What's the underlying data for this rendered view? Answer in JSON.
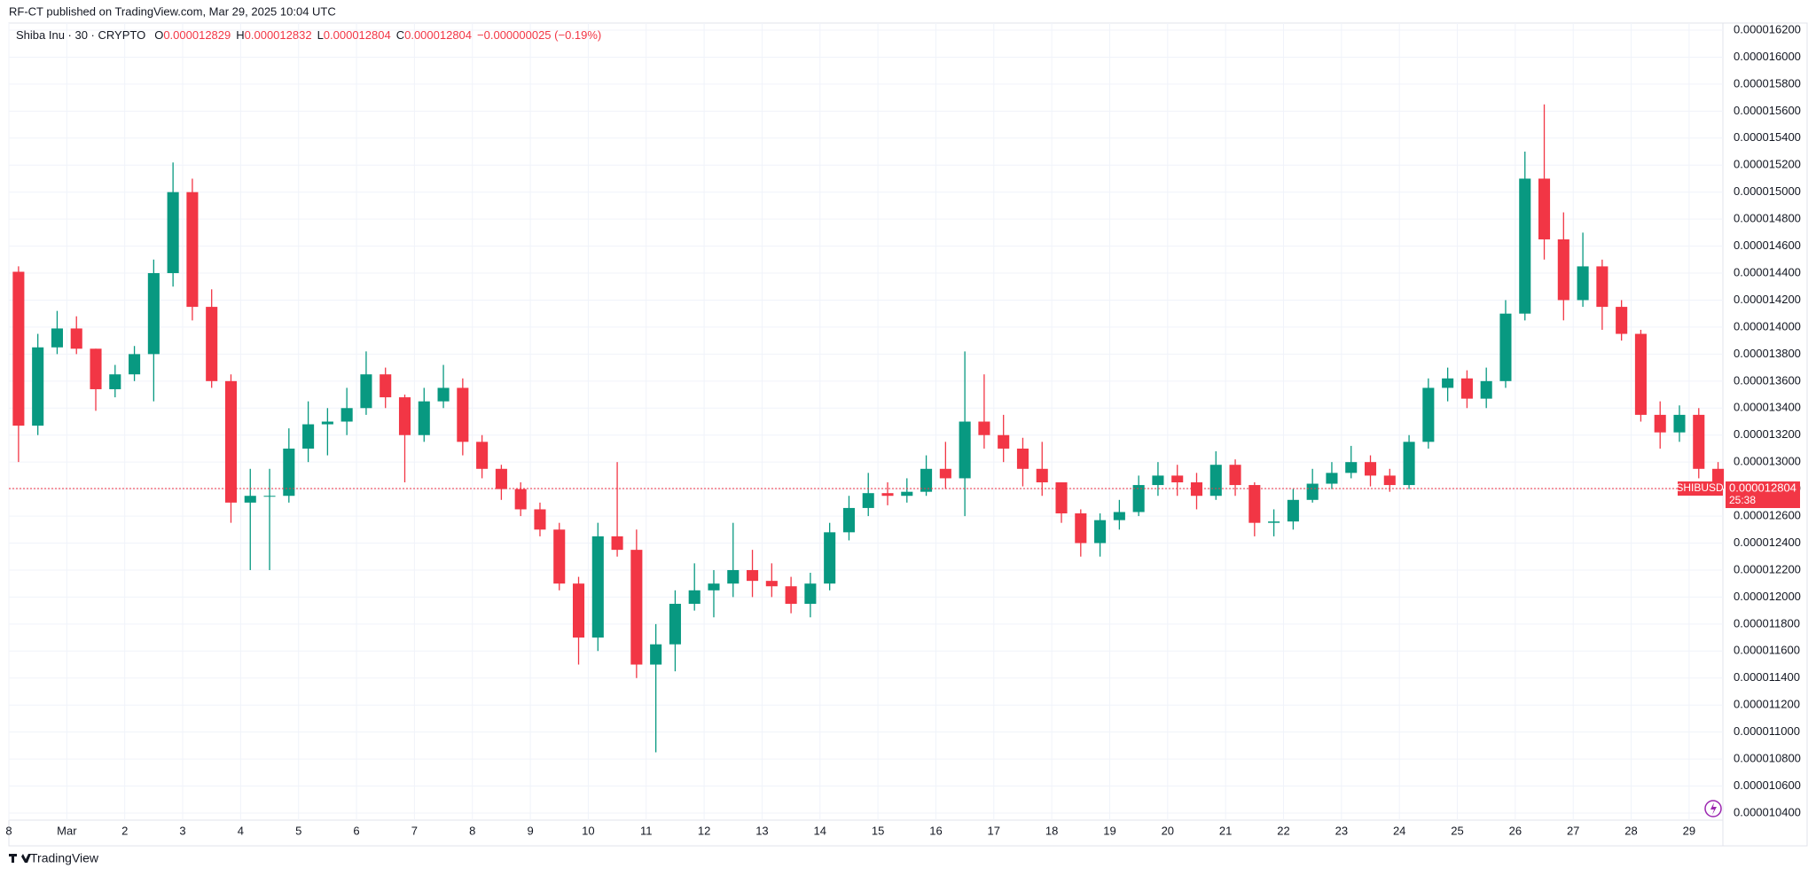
{
  "header": {
    "publisher": "RF-CT published on TradingView.com, Mar 29, 2025 10:04 UTC"
  },
  "footer": {
    "brand": "TradingView"
  },
  "chart_data": {
    "type": "candlestick",
    "legend": {
      "symbol": "Shiba Inu · 30 · CRYPTO",
      "open_label": "O",
      "open": "0.000012829",
      "high_label": "H",
      "high": "0.000012832",
      "low_label": "L",
      "low": "0.000012804",
      "close_label": "C",
      "close": "0.000012804",
      "change": "−0.000000025 (−0.19%)"
    },
    "price_tag": {
      "symbol": "SHIBUSD",
      "price": "0.000012804",
      "countdown": "25:38"
    },
    "up_color": "#089981",
    "down_color": "#f23645",
    "grid": true,
    "x": [
      0,
      8,
      16,
      24,
      32,
      40,
      48,
      56,
      64,
      72,
      80,
      88,
      96,
      104,
      112,
      120,
      128,
      136,
      144,
      152,
      160,
      168,
      176,
      184,
      192,
      200,
      208,
      216,
      224,
      232,
      240,
      248,
      256,
      264,
      272,
      280,
      288,
      296,
      304,
      312,
      320,
      328,
      336,
      344,
      352,
      360,
      368,
      376,
      384,
      392,
      400,
      408,
      416,
      424,
      432,
      440,
      448,
      456,
      464,
      472,
      480,
      488,
      496,
      504,
      512,
      520,
      528,
      536,
      544,
      552,
      560,
      568,
      576,
      584,
      592,
      600,
      608,
      616,
      624,
      632,
      640,
      648,
      656,
      664,
      672,
      680,
      688,
      696,
      704
    ],
    "open": [
      1.441e-05,
      1.327e-05,
      1.385e-05,
      1.399e-05,
      1.384e-05,
      1.354e-05,
      1.365e-05,
      1.38e-05,
      1.44e-05,
      1.5e-05,
      1.415e-05,
      1.36e-05,
      1.27e-05,
      1.275e-05,
      1.275e-05,
      1.31e-05,
      1.328e-05,
      1.33e-05,
      1.34e-05,
      1.365e-05,
      1.348e-05,
      1.32e-05,
      1.345e-05,
      1.355e-05,
      1.315e-05,
      1.295e-05,
      1.28e-05,
      1.265e-05,
      1.25e-05,
      1.21e-05,
      1.17e-05,
      1.245e-05,
      1.235e-05,
      1.15e-05,
      1.165e-05,
      1.195e-05,
      1.205e-05,
      1.21e-05,
      1.22e-05,
      1.212e-05,
      1.208e-05,
      1.195e-05,
      1.21e-05,
      1.248e-05,
      1.266e-05,
      1.277e-05,
      1.275e-05,
      1.278e-05,
      1.295e-05,
      1.288e-05,
      1.33e-05,
      1.32e-05,
      1.31e-05,
      1.295e-05,
      1.285e-05,
      1.262e-05,
      1.24e-05,
      1.257e-05,
      1.263e-05,
      1.283e-05,
      1.29e-05,
      1.285e-05,
      1.275e-05,
      1.298e-05,
      1.283e-05,
      1.255e-05,
      1.256e-05,
      1.272e-05,
      1.284e-05,
      1.292e-05,
      1.3e-05,
      1.29e-05,
      1.283e-05,
      1.315e-05,
      1.355e-05,
      1.362e-05,
      1.347e-05,
      1.36e-05,
      1.41e-05,
      1.51e-05,
      1.465e-05,
      1.42e-05,
      1.445e-05,
      1.415e-05,
      1.395e-05,
      1.335e-05,
      1.322e-05,
      1.335e-05,
      1.295e-05
    ],
    "high": [
      1.445e-05,
      1.395e-05,
      1.412e-05,
      1.408e-05,
      1.384e-05,
      1.372e-05,
      1.386e-05,
      1.45e-05,
      1.522e-05,
      1.51e-05,
      1.428e-05,
      1.365e-05,
      1.295e-05,
      1.295e-05,
      1.325e-05,
      1.345e-05,
      1.34e-05,
      1.355e-05,
      1.382e-05,
      1.37e-05,
      1.35e-05,
      1.355e-05,
      1.372e-05,
      1.362e-05,
      1.32e-05,
      1.298e-05,
      1.285e-05,
      1.27e-05,
      1.255e-05,
      1.215e-05,
      1.255e-05,
      1.3e-05,
      1.25e-05,
      1.18e-05,
      1.205e-05,
      1.225e-05,
      1.22e-05,
      1.255e-05,
      1.235e-05,
      1.225e-05,
      1.215e-05,
      1.218e-05,
      1.255e-05,
      1.275e-05,
      1.292e-05,
      1.285e-05,
      1.288e-05,
      1.305e-05,
      1.315e-05,
      1.382e-05,
      1.365e-05,
      1.335e-05,
      1.318e-05,
      1.315e-05,
      1.285e-05,
      1.265e-05,
      1.262e-05,
      1.272e-05,
      1.29e-05,
      1.3e-05,
      1.298e-05,
      1.292e-05,
      1.308e-05,
      1.302e-05,
      1.285e-05,
      1.265e-05,
      1.28e-05,
      1.295e-05,
      1.3e-05,
      1.312e-05,
      1.305e-05,
      1.295e-05,
      1.32e-05,
      1.362e-05,
      1.37e-05,
      1.368e-05,
      1.37e-05,
      1.42e-05,
      1.53e-05,
      1.565e-05,
      1.485e-05,
      1.47e-05,
      1.45e-05,
      1.42e-05,
      1.398e-05,
      1.345e-05,
      1.342e-05,
      1.34e-05,
      1.3e-05
    ],
    "low": [
      1.3e-05,
      1.32e-05,
      1.38e-05,
      1.38e-05,
      1.338e-05,
      1.348e-05,
      1.36e-05,
      1.345e-05,
      1.43e-05,
      1.405e-05,
      1.355e-05,
      1.255e-05,
      1.22e-05,
      1.22e-05,
      1.27e-05,
      1.3e-05,
      1.305e-05,
      1.32e-05,
      1.335e-05,
      1.34e-05,
      1.285e-05,
      1.315e-05,
      1.34e-05,
      1.305e-05,
      1.288e-05,
      1.272e-05,
      1.26e-05,
      1.245e-05,
      1.205e-05,
      1.15e-05,
      1.16e-05,
      1.23e-05,
      1.14e-05,
      1.085e-05,
      1.145e-05,
      1.19e-05,
      1.185e-05,
      1.2e-05,
      1.2e-05,
      1.2e-05,
      1.188e-05,
      1.185e-05,
      1.205e-05,
      1.242e-05,
      1.26e-05,
      1.268e-05,
      1.27e-05,
      1.275e-05,
      1.28e-05,
      1.26e-05,
      1.31e-05,
      1.3e-05,
      1.282e-05,
      1.275e-05,
      1.255e-05,
      1.23e-05,
      1.23e-05,
      1.25e-05,
      1.26e-05,
      1.275e-05,
      1.275e-05,
      1.265e-05,
      1.272e-05,
      1.275e-05,
      1.245e-05,
      1.245e-05,
      1.25e-05,
      1.27e-05,
      1.28e-05,
      1.288e-05,
      1.282e-05,
      1.278e-05,
      1.28e-05,
      1.31e-05,
      1.345e-05,
      1.34e-05,
      1.34e-05,
      1.355e-05,
      1.405e-05,
      1.45e-05,
      1.405e-05,
      1.415e-05,
      1.398e-05,
      1.39e-05,
      1.33e-05,
      1.31e-05,
      1.315e-05,
      1.288e-05,
      1.278e-05
    ],
    "close": [
      1.327e-05,
      1.385e-05,
      1.399e-05,
      1.384e-05,
      1.354e-05,
      1.365e-05,
      1.38e-05,
      1.44e-05,
      1.5e-05,
      1.415e-05,
      1.36e-05,
      1.27e-05,
      1.275e-05,
      1.275e-05,
      1.31e-05,
      1.328e-05,
      1.33e-05,
      1.34e-05,
      1.365e-05,
      1.348e-05,
      1.32e-05,
      1.345e-05,
      1.355e-05,
      1.315e-05,
      1.295e-05,
      1.28e-05,
      1.265e-05,
      1.25e-05,
      1.21e-05,
      1.17e-05,
      1.245e-05,
      1.235e-05,
      1.15e-05,
      1.165e-05,
      1.195e-05,
      1.205e-05,
      1.21e-05,
      1.22e-05,
      1.212e-05,
      1.208e-05,
      1.195e-05,
      1.21e-05,
      1.248e-05,
      1.266e-05,
      1.277e-05,
      1.275e-05,
      1.278e-05,
      1.295e-05,
      1.288e-05,
      1.33e-05,
      1.32e-05,
      1.31e-05,
      1.295e-05,
      1.285e-05,
      1.262e-05,
      1.24e-05,
      1.257e-05,
      1.263e-05,
      1.283e-05,
      1.29e-05,
      1.285e-05,
      1.275e-05,
      1.298e-05,
      1.283e-05,
      1.255e-05,
      1.256e-05,
      1.272e-05,
      1.284e-05,
      1.292e-05,
      1.3e-05,
      1.29e-05,
      1.283e-05,
      1.315e-05,
      1.355e-05,
      1.362e-05,
      1.347e-05,
      1.36e-05,
      1.41e-05,
      1.51e-05,
      1.465e-05,
      1.42e-05,
      1.445e-05,
      1.415e-05,
      1.395e-05,
      1.335e-05,
      1.322e-05,
      1.335e-05,
      1.295e-05,
      1.2804e-05
    ],
    "xlim": [
      0,
      710
    ],
    "xticks": [
      {
        "value": 0,
        "label": "8"
      },
      {
        "value": 24,
        "label": "Mar"
      },
      {
        "value": 48,
        "label": "2"
      },
      {
        "value": 72,
        "label": "3"
      },
      {
        "value": 96,
        "label": "4"
      },
      {
        "value": 120,
        "label": "5"
      },
      {
        "value": 144,
        "label": "6"
      },
      {
        "value": 168,
        "label": "7"
      },
      {
        "value": 192,
        "label": "8"
      },
      {
        "value": 216,
        "label": "9"
      },
      {
        "value": 240,
        "label": "10"
      },
      {
        "value": 264,
        "label": "11"
      },
      {
        "value": 288,
        "label": "12"
      },
      {
        "value": 312,
        "label": "13"
      },
      {
        "value": 336,
        "label": "14"
      },
      {
        "value": 360,
        "label": "15"
      },
      {
        "value": 384,
        "label": "16"
      },
      {
        "value": 408,
        "label": "17"
      },
      {
        "value": 432,
        "label": "18"
      },
      {
        "value": 456,
        "label": "19"
      },
      {
        "value": 480,
        "label": "20"
      },
      {
        "value": 504,
        "label": "21"
      },
      {
        "value": 528,
        "label": "22"
      },
      {
        "value": 552,
        "label": "23"
      },
      {
        "value": 576,
        "label": "24"
      },
      {
        "value": 600,
        "label": "25"
      },
      {
        "value": 624,
        "label": "26"
      },
      {
        "value": 648,
        "label": "27"
      },
      {
        "value": 672,
        "label": "28"
      },
      {
        "value": 696,
        "label": "29"
      }
    ],
    "ylim": [
      1.04e-05,
      1.62e-05
    ],
    "yticks": [
      {
        "value": 1.04e-05,
        "label": "0.000010400"
      },
      {
        "value": 1.06e-05,
        "label": "0.000010600"
      },
      {
        "value": 1.08e-05,
        "label": "0.000010800"
      },
      {
        "value": 1.1e-05,
        "label": "0.000011000"
      },
      {
        "value": 1.12e-05,
        "label": "0.000011200"
      },
      {
        "value": 1.14e-05,
        "label": "0.000011400"
      },
      {
        "value": 1.16e-05,
        "label": "0.000011600"
      },
      {
        "value": 1.18e-05,
        "label": "0.000011800"
      },
      {
        "value": 1.2e-05,
        "label": "0.000012000"
      },
      {
        "value": 1.22e-05,
        "label": "0.000012200"
      },
      {
        "value": 1.24e-05,
        "label": "0.000012400"
      },
      {
        "value": 1.26e-05,
        "label": "0.000012600"
      },
      {
        "value": 1.28e-05,
        "label": "0.000012800"
      },
      {
        "value": 1.3e-05,
        "label": "0.000013000"
      },
      {
        "value": 1.32e-05,
        "label": "0.000013200"
      },
      {
        "value": 1.34e-05,
        "label": "0.000013400"
      },
      {
        "value": 1.36e-05,
        "label": "0.000013600"
      },
      {
        "value": 1.38e-05,
        "label": "0.000013800"
      },
      {
        "value": 1.4e-05,
        "label": "0.000014000"
      },
      {
        "value": 1.42e-05,
        "label": "0.000014200"
      },
      {
        "value": 1.44e-05,
        "label": "0.000014400"
      },
      {
        "value": 1.46e-05,
        "label": "0.000014600"
      },
      {
        "value": 1.48e-05,
        "label": "0.000014800"
      },
      {
        "value": 1.5e-05,
        "label": "0.000015000"
      },
      {
        "value": 1.52e-05,
        "label": "0.000015200"
      },
      {
        "value": 1.54e-05,
        "label": "0.000015400"
      },
      {
        "value": 1.56e-05,
        "label": "0.000015600"
      },
      {
        "value": 1.58e-05,
        "label": "0.000015800"
      },
      {
        "value": 1.6e-05,
        "label": "0.000016000"
      },
      {
        "value": 1.62e-05,
        "label": "0.000016200"
      }
    ]
  }
}
